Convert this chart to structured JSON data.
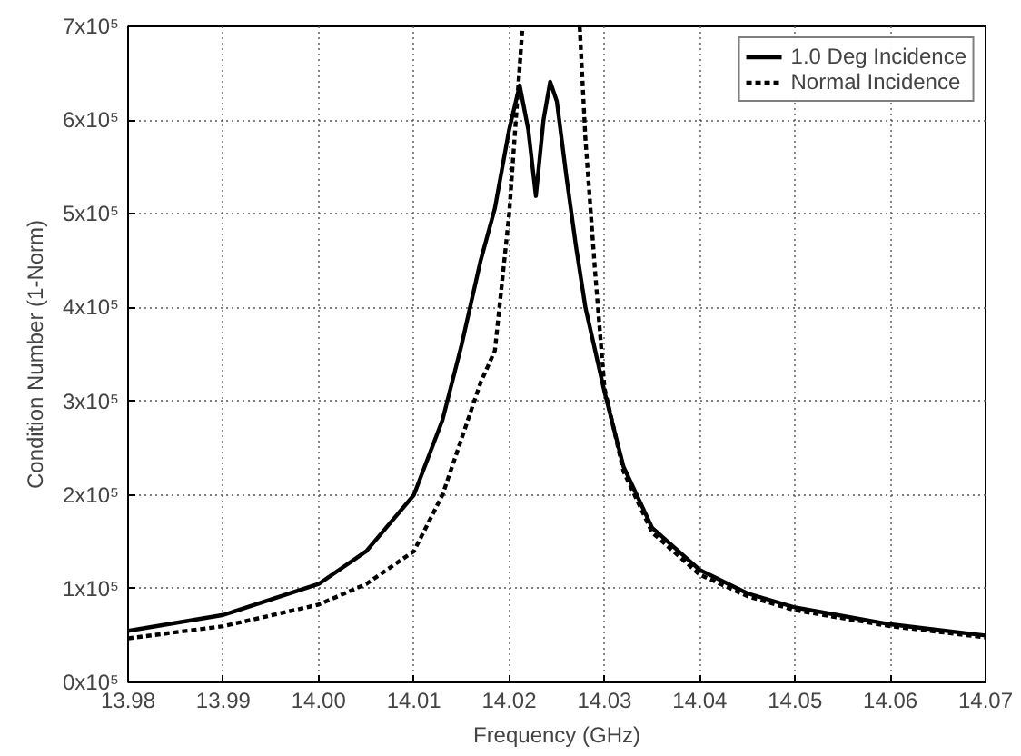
{
  "chart_data": {
    "type": "line",
    "xlabel": "Frequency (GHz)",
    "ylabel": "Condition Number (1-Norm)",
    "xlim": [
      13.98,
      14.07
    ],
    "ylim": [
      0,
      700000
    ],
    "xticks": [
      {
        "value": 13.98,
        "label": "13.98"
      },
      {
        "value": 13.99,
        "label": "13.99"
      },
      {
        "value": 14.0,
        "label": "14.00"
      },
      {
        "value": 14.01,
        "label": "14.01"
      },
      {
        "value": 14.02,
        "label": "14.02"
      },
      {
        "value": 14.03,
        "label": "14.03"
      },
      {
        "value": 14.04,
        "label": "14.04"
      },
      {
        "value": 14.05,
        "label": "14.05"
      },
      {
        "value": 14.06,
        "label": "14.06"
      },
      {
        "value": 14.07,
        "label": "14.07"
      }
    ],
    "yticks": [
      {
        "value": 0,
        "label": "0x10⁵"
      },
      {
        "value": 100000,
        "label": "1x10⁵"
      },
      {
        "value": 200000,
        "label": "2x10⁵"
      },
      {
        "value": 300000,
        "label": "3x10⁵"
      },
      {
        "value": 400000,
        "label": "4x10⁵"
      },
      {
        "value": 500000,
        "label": "5x10⁵"
      },
      {
        "value": 600000,
        "label": "6x10⁵"
      },
      {
        "value": 700000,
        "label": "7x10⁵"
      }
    ],
    "grid": true,
    "legend": "top right",
    "series": [
      {
        "name": "1.0 Deg Incidence",
        "color": "#000000",
        "line_style": "solid",
        "x": [
          13.98,
          13.99,
          14.0,
          14.005,
          14.01,
          14.013,
          14.015,
          14.017,
          14.0185,
          14.02,
          14.0211,
          14.022,
          14.0228,
          14.0236,
          14.0243,
          14.025,
          14.026,
          14.027,
          14.028,
          14.03,
          14.032,
          14.035,
          14.04,
          14.045,
          14.05,
          14.06,
          14.07
        ],
        "values": [
          55000,
          72000,
          105000,
          140000,
          200000,
          280000,
          360000,
          450000,
          506000,
          590000,
          637000,
          590000,
          519000,
          600000,
          641000,
          620000,
          540000,
          466000,
          400000,
          310000,
          230000,
          165000,
          120000,
          95000,
          80000,
          62000,
          50000
        ]
      },
      {
        "name": "Normal Incidence",
        "color": "#000000",
        "line_style": "dashed",
        "x": [
          13.98,
          13.99,
          14.0,
          14.005,
          14.01,
          14.013,
          14.015,
          14.017,
          14.0185,
          14.02,
          14.0214,
          14.0244,
          14.0274,
          14.028,
          14.029,
          14.03,
          14.032,
          14.035,
          14.04,
          14.045,
          14.05,
          14.06,
          14.07
        ],
        "values": [
          47000,
          60000,
          83000,
          105000,
          140000,
          200000,
          260000,
          320000,
          354000,
          500000,
          700000,
          null,
          700000,
          580000,
          440000,
          314000,
          225000,
          160000,
          115000,
          92000,
          77000,
          60000,
          48000
        ]
      }
    ]
  }
}
